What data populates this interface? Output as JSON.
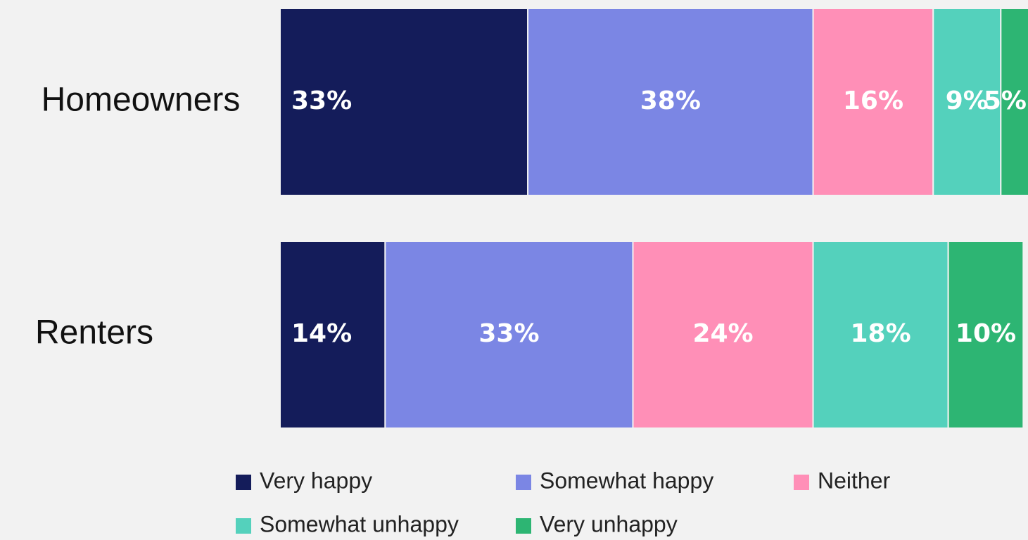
{
  "chart_data": {
    "type": "stacked_bar_horizontal",
    "categories": [
      "Homeowners",
      "Renters"
    ],
    "series": [
      {
        "name": "Very happy",
        "color": "#141c5a",
        "values": [
          33,
          14
        ],
        "value_labels": [
          "33%",
          "14%"
        ]
      },
      {
        "name": "Somewhat happy",
        "color": "#7b86e4",
        "values": [
          38,
          33
        ],
        "value_labels": [
          "38%",
          "33%"
        ]
      },
      {
        "name": "Neither",
        "color": "#ff8fb7",
        "values": [
          16,
          24
        ],
        "value_labels": [
          "16%",
          "24%"
        ]
      },
      {
        "name": "Somewhat unhappy",
        "color": "#54d1bc",
        "values": [
          9,
          18
        ],
        "value_labels": [
          "9%",
          "18%"
        ]
      },
      {
        "name": "Very unhappy",
        "color": "#2db573",
        "values": [
          5,
          10
        ],
        "value_labels": [
          "5%",
          "10%"
        ]
      }
    ],
    "legend": "bottom"
  }
}
